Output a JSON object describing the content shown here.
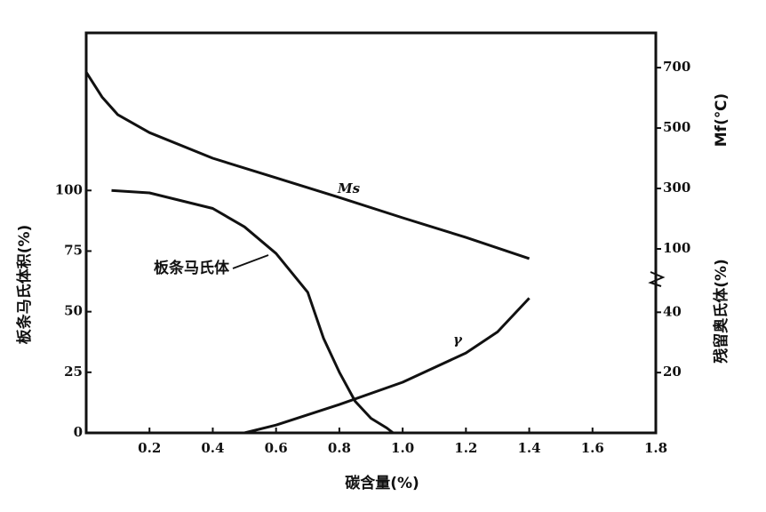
{
  "chart_data": {
    "type": "line",
    "x_label": "碳含量(%)",
    "y_label": "板条马氏体积(%)",
    "y2_label": "Mf(℃)",
    "y3_label": "残留奥氏体(%)",
    "xlim": [
      0,
      1.8
    ],
    "xticks": [
      0.2,
      0.4,
      0.6,
      0.8,
      {
        "value": 1,
        "label": "1.0"
      },
      1.2,
      1.4,
      1.6,
      1.8
    ],
    "ylim": [
      0,
      165
    ],
    "yticks": [
      0,
      25,
      50,
      75,
      100
    ],
    "y2lim": [
      0,
      815
    ],
    "y2ticks": [
      100,
      300,
      500,
      700
    ],
    "y3lim": [
      0,
      51
    ],
    "y3ticks": [
      20,
      40
    ],
    "series": [
      {
        "name": "Ms",
        "axis": "y2",
        "color": "#111111",
        "x": [
          0,
          0.05,
          0.1,
          0.2,
          0.4,
          0.6,
          0.8,
          1.0,
          1.2,
          1.4
        ],
        "values": [
          685,
          603,
          544,
          485,
          400,
          335,
          270,
          203,
          138,
          68
        ]
      },
      {
        "name": "板条马氏体",
        "axis": "y",
        "color": "#111111",
        "x": [
          0.08,
          0.2,
          0.4,
          0.5,
          0.6,
          0.7,
          0.75,
          0.8,
          0.85,
          0.9,
          0.95,
          0.97
        ],
        "values": [
          100,
          99,
          92.6,
          85,
          74,
          58,
          39,
          25,
          13,
          6,
          2,
          0
        ]
      },
      {
        "name": "γ",
        "axis": "y3",
        "color": "#111111",
        "x": [
          0.5,
          0.6,
          0.8,
          1.0,
          1.2,
          1.3,
          1.4
        ],
        "values": [
          0,
          2.6,
          9.4,
          16.8,
          26.5,
          33.5,
          44.7
        ]
      }
    ]
  }
}
